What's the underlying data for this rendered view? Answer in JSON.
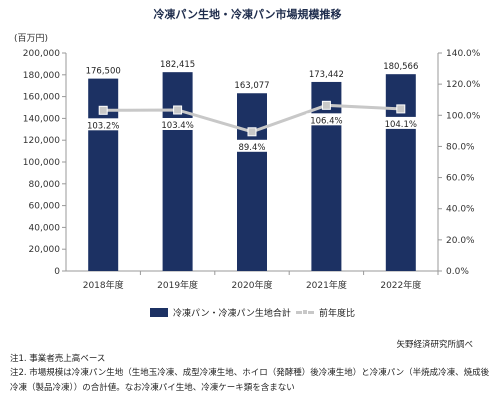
{
  "title": "冷凍パン生地・冷凍パン市場規模推移",
  "unit_label": "(百万円)",
  "chart_data": {
    "type": "bar",
    "categories": [
      "2018年度",
      "2019年度",
      "2020年度",
      "2021年度",
      "2022年度"
    ],
    "series": [
      {
        "name": "冷凍パン・冷凍パン生地合計",
        "type": "bar",
        "axis": "left",
        "values": [
          176500,
          182415,
          163077,
          173442,
          180566
        ],
        "labels": [
          "176,500",
          "182,415",
          "163,077",
          "173,442",
          "180,566"
        ]
      },
      {
        "name": "前年度比",
        "type": "line",
        "axis": "right",
        "values": [
          103.2,
          103.4,
          89.4,
          106.4,
          104.1
        ],
        "labels": [
          "103.2%",
          "103.4%",
          "89.4%",
          "106.4%",
          "104.1%"
        ]
      }
    ],
    "ylim_left": [
      0,
      200000
    ],
    "yticks_left": [
      "0",
      "20,000",
      "40,000",
      "60,000",
      "80,000",
      "100,000",
      "120,000",
      "140,000",
      "160,000",
      "180,000",
      "200,000"
    ],
    "ylim_right": [
      0,
      140
    ],
    "yticks_right": [
      "0.0%",
      "20.0%",
      "40.0%",
      "60.0%",
      "80.0%",
      "100.0%",
      "120.0%",
      "140.0%"
    ],
    "grid": false,
    "legend_position": "bottom",
    "colors": {
      "bar": "#1c3163",
      "line": "#c8c8c8"
    }
  },
  "legend": {
    "bar_label": "冷凍パン・冷凍パン生地合計",
    "line_label": "前年度比"
  },
  "source": "矢野経済研究所調べ",
  "notes": [
    "注1. 事業者売上高ベース",
    "注2. 市場規模は冷凍パン生地（生地玉冷凍、成型冷凍生地、ホイロ（発酵種）後冷凍生地）と冷凍パン（半焼成冷凍、焼成後冷凍（製品冷凍））の合計値。なお冷凍パイ生地、冷凍ケーキ類を含まない"
  ]
}
